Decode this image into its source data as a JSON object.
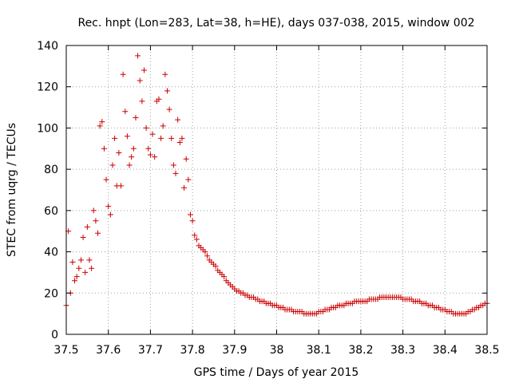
{
  "chart_data": {
    "type": "scatter",
    "title": "Rec. hnpt (Lon=283, Lat=38, h=HE), days 037-038, 2015, window 002",
    "xlabel": "GPS time / Days of year 2015",
    "ylabel": "STEC from uqrg / TECUs",
    "xlim": [
      37.5,
      38.5
    ],
    "ylim": [
      0,
      140
    ],
    "xticks": [
      37.5,
      37.6,
      37.7,
      37.8,
      37.9,
      38.0,
      38.1,
      38.2,
      38.3,
      38.4,
      38.5
    ],
    "xtick_labels": [
      "37.5",
      "37.6",
      "37.7",
      "37.8",
      "37.9",
      "38",
      "38.1",
      "38.2",
      "38.3",
      "38.4",
      "38.5"
    ],
    "yticks": [
      0,
      20,
      40,
      60,
      80,
      100,
      120,
      140
    ],
    "ytick_labels": [
      "0",
      "20",
      "40",
      "60",
      "80",
      "100",
      "120",
      "140"
    ],
    "grid": true,
    "marker": "+",
    "colors": {
      "points": "#cc0000",
      "axis": "#000000",
      "grid": "#a0a0a0"
    },
    "series": [
      {
        "name": "STEC",
        "x": [
          37.5,
          37.505,
          37.51,
          37.515,
          37.52,
          37.525,
          37.53,
          37.535,
          37.54,
          37.545,
          37.55,
          37.555,
          37.56,
          37.565,
          37.57,
          37.575,
          37.58,
          37.585,
          37.59,
          37.595,
          37.6,
          37.605,
          37.61,
          37.615,
          37.62,
          37.625,
          37.63,
          37.635,
          37.64,
          37.645,
          37.65,
          37.655,
          37.66,
          37.665,
          37.67,
          37.675,
          37.68,
          37.685,
          37.69,
          37.695,
          37.7,
          37.705,
          37.71,
          37.715,
          37.72,
          37.725,
          37.73,
          37.735,
          37.74,
          37.745,
          37.75,
          37.755,
          37.76,
          37.765,
          37.77,
          37.775,
          37.78,
          37.785,
          37.79,
          37.795,
          37.8,
          37.805,
          37.81,
          37.815,
          37.82,
          37.825,
          37.83,
          37.835,
          37.84,
          37.845,
          37.85,
          37.855,
          37.86,
          37.865,
          37.87,
          37.875,
          37.88,
          37.885,
          37.89,
          37.895,
          37.9,
          37.905,
          37.91,
          37.915,
          37.92,
          37.925,
          37.93,
          37.935,
          37.94,
          37.945,
          37.95,
          37.955,
          37.96,
          37.965,
          37.97,
          37.975,
          37.98,
          37.985,
          37.99,
          37.995,
          38.0,
          38.005,
          38.01,
          38.015,
          38.02,
          38.025,
          38.03,
          38.035,
          38.04,
          38.045,
          38.05,
          38.055,
          38.06,
          38.065,
          38.07,
          38.075,
          38.08,
          38.085,
          38.09,
          38.095,
          38.1,
          38.105,
          38.11,
          38.115,
          38.12,
          38.125,
          38.13,
          38.135,
          38.14,
          38.145,
          38.15,
          38.155,
          38.16,
          38.165,
          38.17,
          38.175,
          38.18,
          38.185,
          38.19,
          38.195,
          38.2,
          38.205,
          38.21,
          38.215,
          38.22,
          38.225,
          38.23,
          38.235,
          38.24,
          38.245,
          38.25,
          38.255,
          38.26,
          38.265,
          38.27,
          38.275,
          38.28,
          38.285,
          38.29,
          38.295,
          38.3,
          38.305,
          38.31,
          38.315,
          38.32,
          38.325,
          38.33,
          38.335,
          38.34,
          38.345,
          38.35,
          38.355,
          38.36,
          38.365,
          38.37,
          38.375,
          38.38,
          38.385,
          38.39,
          38.395,
          38.4,
          38.405,
          38.41,
          38.415,
          38.42,
          38.425,
          38.43,
          38.435,
          38.44,
          38.445,
          38.45,
          38.455,
          38.46,
          38.465,
          38.47,
          38.475,
          38.48,
          38.485,
          38.49,
          38.495,
          38.5
        ],
        "y": [
          14,
          50,
          20,
          35,
          26,
          28,
          32,
          36,
          47,
          30,
          52,
          36,
          32,
          60,
          55,
          49,
          101,
          103,
          90,
          75,
          62,
          58,
          82,
          95,
          72,
          88,
          72,
          126,
          108,
          96,
          82,
          86,
          90,
          105,
          135,
          123,
          113,
          128,
          100,
          90,
          87,
          97,
          86,
          113,
          114,
          95,
          101,
          126,
          118,
          109,
          95,
          82,
          78,
          104,
          93,
          95,
          71,
          85,
          75,
          58,
          55,
          48,
          46,
          43,
          42,
          41,
          40,
          38,
          36,
          35,
          34,
          33,
          31,
          30,
          29,
          28,
          26,
          25,
          24,
          23,
          22,
          21,
          21,
          20,
          20,
          19,
          19,
          18,
          18,
          18,
          17,
          17,
          16,
          16,
          16,
          15,
          15,
          15,
          14,
          14,
          14,
          13,
          13,
          13,
          12,
          12,
          12,
          12,
          11,
          11,
          11,
          11,
          11,
          10,
          10,
          10,
          10,
          10,
          10,
          10,
          11,
          11,
          11,
          12,
          12,
          12,
          13,
          13,
          13,
          14,
          14,
          14,
          14,
          15,
          15,
          15,
          15,
          16,
          16,
          16,
          16,
          16,
          16,
          16,
          17,
          17,
          17,
          17,
          17,
          18,
          18,
          18,
          18,
          18,
          18,
          18,
          18,
          18,
          18,
          18,
          17,
          17,
          17,
          17,
          17,
          16,
          16,
          16,
          16,
          15,
          15,
          15,
          14,
          14,
          14,
          13,
          13,
          13,
          12,
          12,
          12,
          11,
          11,
          11,
          10,
          10,
          10,
          10,
          10,
          10,
          10,
          11,
          11,
          12,
          12,
          13,
          13,
          14,
          14,
          15,
          15
        ]
      }
    ]
  }
}
